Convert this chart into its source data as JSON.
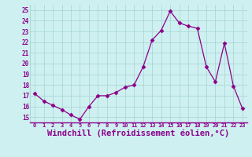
{
  "x": [
    0,
    1,
    2,
    3,
    4,
    5,
    6,
    7,
    8,
    9,
    10,
    11,
    12,
    13,
    14,
    15,
    16,
    17,
    18,
    19,
    20,
    21,
    22,
    23
  ],
  "y": [
    17.2,
    16.5,
    16.1,
    15.7,
    15.2,
    14.8,
    16.0,
    17.0,
    17.0,
    17.3,
    17.8,
    18.0,
    19.7,
    22.2,
    23.1,
    24.9,
    23.8,
    23.5,
    23.3,
    19.7,
    18.3,
    21.9,
    17.9,
    15.8
  ],
  "line_color": "#8B008B",
  "marker": "D",
  "marker_size": 2.5,
  "bg_color": "#cff0f0",
  "grid_color": "#aad8d8",
  "xlabel": "Windchill (Refroidissement éolien,°C)",
  "xlabel_fontsize": 7.5,
  "ylabel_ticks": [
    15,
    16,
    17,
    18,
    19,
    20,
    21,
    22,
    23,
    24,
    25
  ],
  "xtick_labels": [
    "0",
    "1",
    "2",
    "3",
    "4",
    "5",
    "6",
    "7",
    "8",
    "9",
    "10",
    "11",
    "12",
    "13",
    "14",
    "15",
    "16",
    "17",
    "18",
    "19",
    "20",
    "21",
    "22",
    "23"
  ],
  "ylim": [
    14.5,
    25.5
  ],
  "xlim": [
    -0.5,
    23.5
  ]
}
